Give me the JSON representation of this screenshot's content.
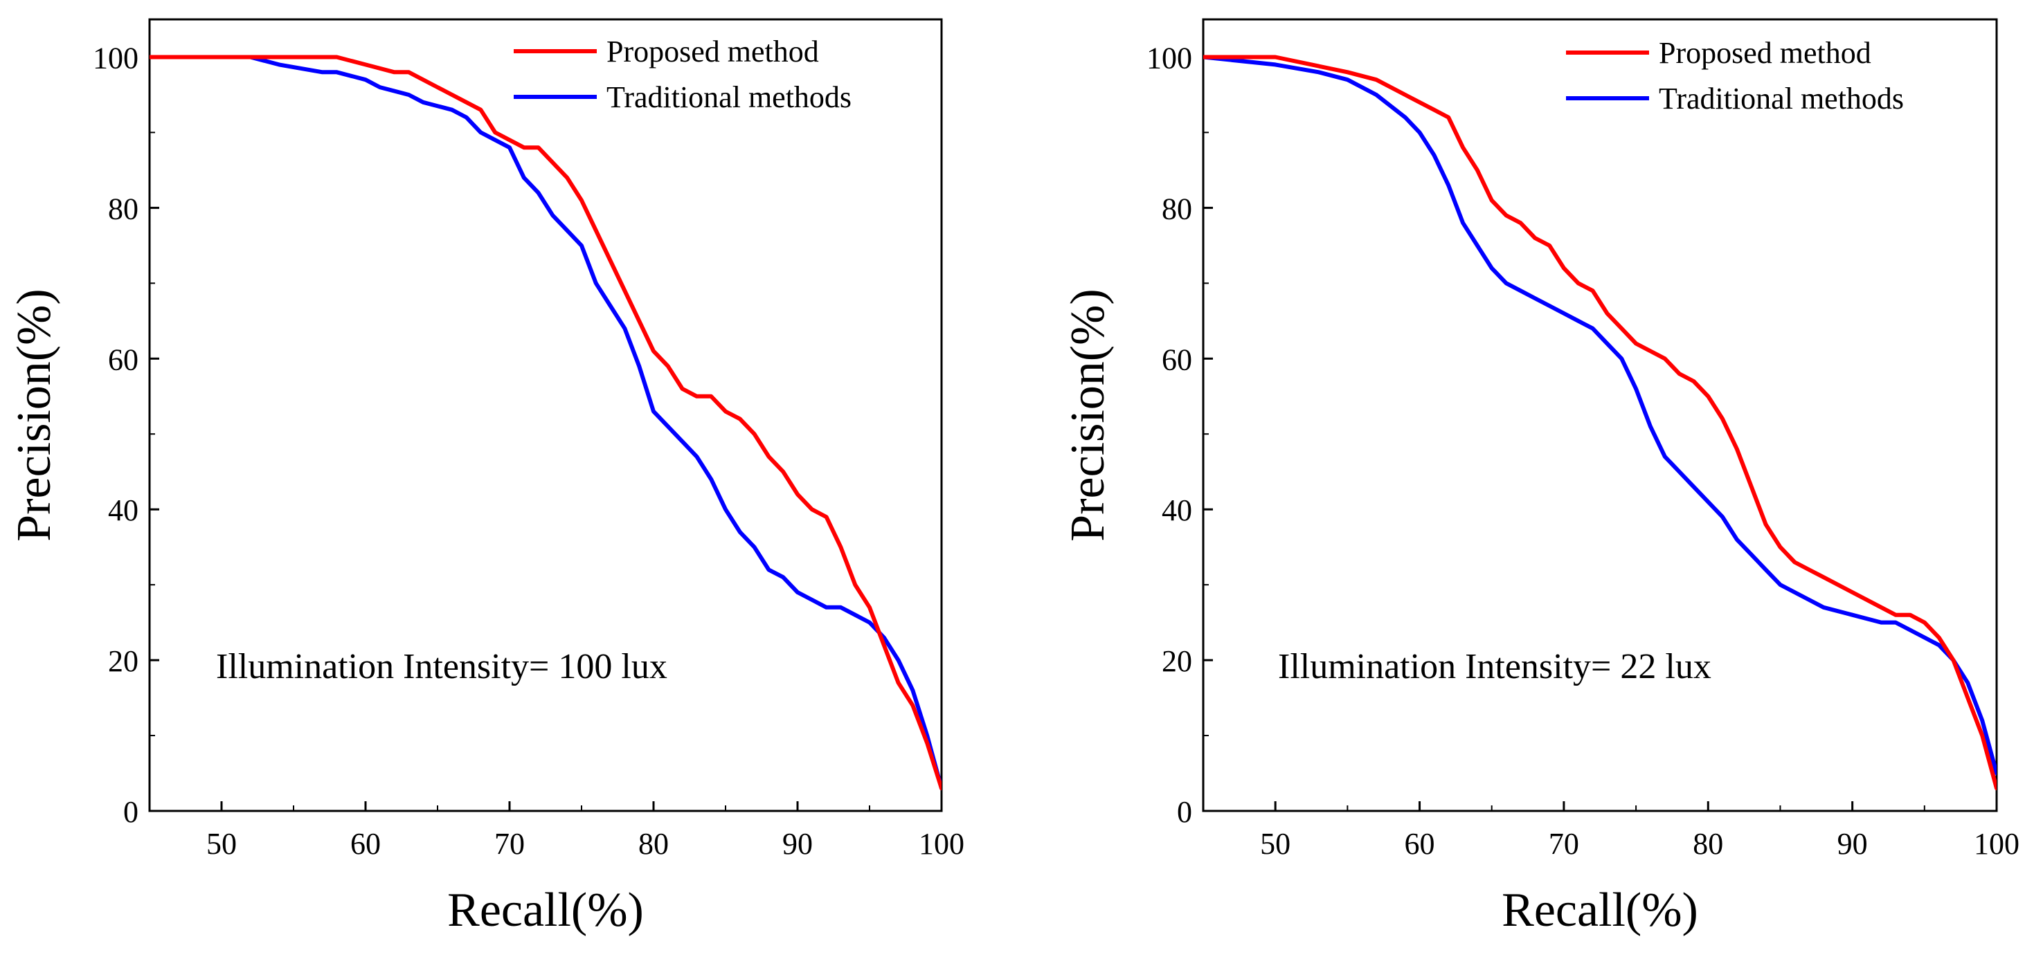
{
  "chart_data": [
    {
      "type": "line",
      "title": "",
      "xlabel": "Recall(%)",
      "ylabel": "Precision(%)",
      "xlim": [
        45,
        100
      ],
      "ylim": [
        0,
        105
      ],
      "xticks": [
        50,
        60,
        70,
        80,
        90,
        100
      ],
      "yticks": [
        0,
        20,
        40,
        60,
        80,
        100
      ],
      "grid": false,
      "legend_position": "top-right",
      "annotation": "Illumination Intensity= 100 lux",
      "series": [
        {
          "name": "Proposed method",
          "color": "#ff0000",
          "x": [
            45,
            52,
            55,
            58,
            60,
            62,
            63,
            65,
            67,
            68,
            69,
            70,
            71,
            72,
            74,
            75,
            76,
            78,
            79,
            80,
            81,
            82,
            83,
            84,
            85,
            86,
            87,
            88,
            89,
            90,
            91,
            92,
            93,
            94,
            95,
            96,
            97,
            98,
            99,
            100
          ],
          "y": [
            100,
            100,
            100,
            100,
            99,
            98,
            98,
            96,
            94,
            93,
            90,
            89,
            88,
            88,
            84,
            81,
            77,
            69,
            65,
            61,
            59,
            56,
            55,
            55,
            53,
            52,
            50,
            47,
            45,
            42,
            40,
            39,
            35,
            30,
            27,
            22,
            17,
            14,
            9,
            3
          ]
        },
        {
          "name": "Traditional methods",
          "color": "#0000ff",
          "x": [
            45,
            52,
            54,
            57,
            58,
            60,
            61,
            63,
            64,
            66,
            67,
            68,
            69,
            70,
            71,
            72,
            73,
            74,
            75,
            76,
            77,
            78,
            79,
            80,
            81,
            82,
            83,
            84,
            85,
            86,
            87,
            88,
            89,
            90,
            91,
            92,
            93,
            94,
            95,
            96,
            97,
            98,
            99,
            100
          ],
          "y": [
            100,
            100,
            99,
            98,
            98,
            97,
            96,
            95,
            94,
            93,
            92,
            90,
            89,
            88,
            84,
            82,
            79,
            77,
            75,
            70,
            67,
            64,
            59,
            53,
            51,
            49,
            47,
            44,
            40,
            37,
            35,
            32,
            31,
            29,
            28,
            27,
            27,
            26,
            25,
            23,
            20,
            16,
            10,
            3
          ]
        }
      ]
    },
    {
      "type": "line",
      "title": "",
      "xlabel": "Recall(%)",
      "ylabel": "Precision(%)",
      "xlim": [
        45,
        100
      ],
      "ylim": [
        0,
        105
      ],
      "xticks": [
        50,
        60,
        70,
        80,
        90,
        100
      ],
      "yticks": [
        0,
        20,
        40,
        60,
        80,
        100
      ],
      "grid": false,
      "legend_position": "top-right",
      "annotation": "Illumination Intensity= 22 lux",
      "series": [
        {
          "name": "Proposed method",
          "color": "#ff0000",
          "x": [
            45,
            50,
            55,
            57,
            59,
            61,
            62,
            63,
            64,
            65,
            66,
            67,
            68,
            69,
            70,
            71,
            72,
            73,
            74,
            75,
            76,
            77,
            78,
            79,
            80,
            81,
            82,
            83,
            84,
            85,
            86,
            87,
            88,
            90,
            92,
            93,
            94,
            95,
            96,
            97,
            98,
            99,
            100
          ],
          "y": [
            100,
            100,
            98,
            97,
            95,
            93,
            92,
            88,
            85,
            81,
            79,
            78,
            76,
            75,
            72,
            70,
            69,
            66,
            64,
            62,
            61,
            60,
            58,
            57,
            55,
            52,
            48,
            43,
            38,
            35,
            33,
            32,
            31,
            29,
            27,
            26,
            26,
            25,
            23,
            20,
            15,
            10,
            3
          ]
        },
        {
          "name": "Traditional methods",
          "color": "#0000ff",
          "x": [
            45,
            50,
            53,
            55,
            57,
            59,
            60,
            61,
            62,
            63,
            64,
            65,
            66,
            67,
            68,
            69,
            70,
            71,
            72,
            73,
            74,
            75,
            76,
            77,
            78,
            79,
            80,
            81,
            82,
            83,
            84,
            85,
            86,
            87,
            88,
            90,
            92,
            93,
            94,
            95,
            96,
            97,
            98,
            99,
            100
          ],
          "y": [
            100,
            99,
            98,
            97,
            95,
            92,
            90,
            87,
            83,
            78,
            75,
            72,
            70,
            69,
            68,
            67,
            66,
            65,
            64,
            62,
            60,
            56,
            51,
            47,
            45,
            43,
            41,
            39,
            36,
            34,
            32,
            30,
            29,
            28,
            27,
            26,
            25,
            25,
            24,
            23,
            22,
            20,
            17,
            12,
            5
          ]
        }
      ]
    }
  ]
}
